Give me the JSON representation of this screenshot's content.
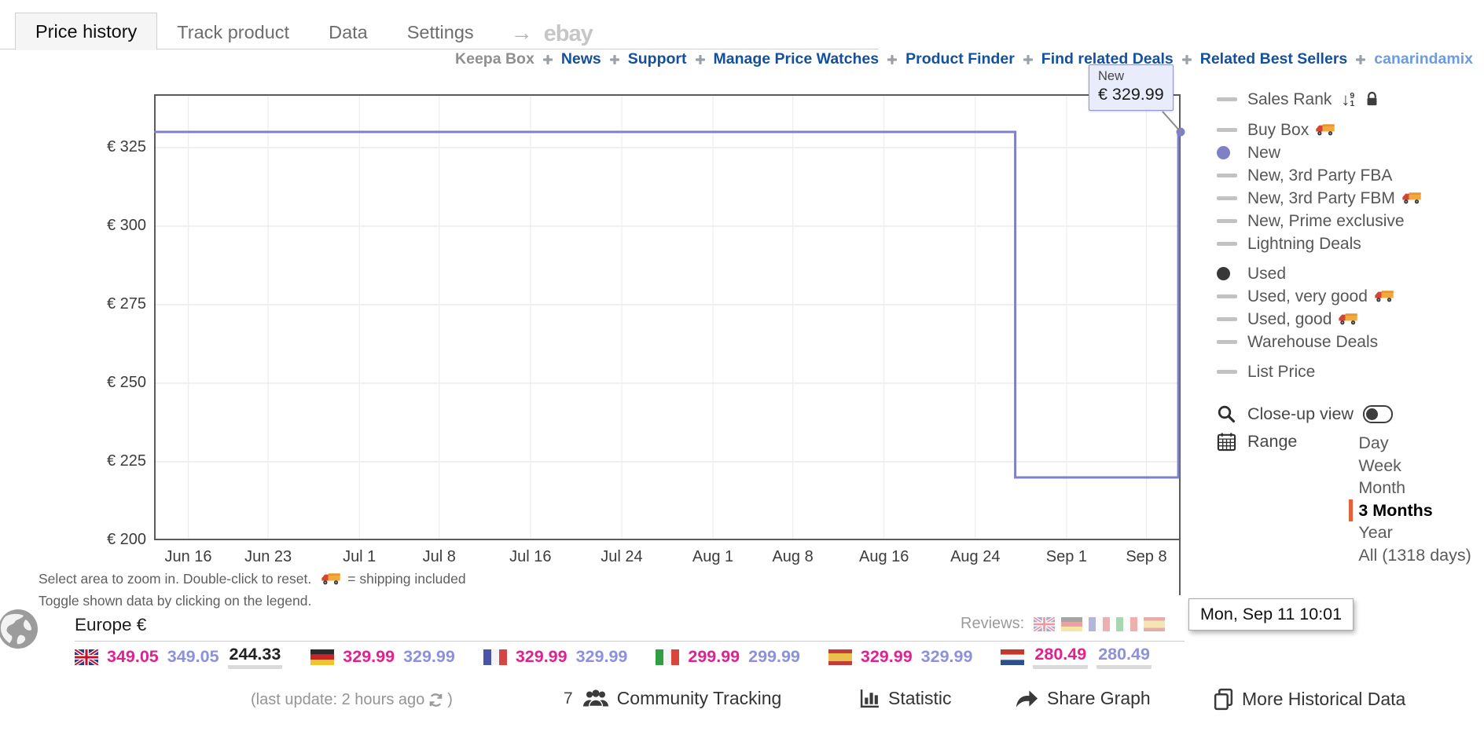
{
  "tabs": {
    "items": [
      {
        "label": "Price history",
        "active": true
      },
      {
        "label": "Track product",
        "active": false
      },
      {
        "label": "Data",
        "active": false
      },
      {
        "label": "Settings",
        "active": false
      }
    ],
    "arrow": "→",
    "ebay_logo": "ebay"
  },
  "nav": {
    "prefix": "Keepa Box",
    "links": [
      "News",
      "Support",
      "Manage Price Watches",
      "Product Finder",
      "Find related Deals",
      "Related Best Sellers"
    ],
    "user": "canarindamix"
  },
  "tooltip": {
    "title": "New",
    "price": "€ 329.99"
  },
  "legend": {
    "items": [
      {
        "label": "Sales Rank",
        "marker": "dash",
        "truck": false,
        "sort_icon": true,
        "lock_icon": true,
        "gap": ""
      },
      {
        "label": "Buy Box",
        "marker": "dash",
        "truck": true,
        "gap": "sm"
      },
      {
        "label": "New",
        "marker": "dot-purple",
        "truck": false,
        "gap": ""
      },
      {
        "label": "New, 3rd Party FBA",
        "marker": "dash",
        "truck": false,
        "gap": ""
      },
      {
        "label": "New, 3rd Party FBM",
        "marker": "dash",
        "truck": true,
        "gap": ""
      },
      {
        "label": "New, Prime exclusive",
        "marker": "dash",
        "truck": false,
        "gap": ""
      },
      {
        "label": "Lightning Deals",
        "marker": "dash",
        "truck": false,
        "gap": ""
      },
      {
        "label": "Used",
        "marker": "dot-dark",
        "truck": false,
        "gap": "md"
      },
      {
        "label": "Used, very good",
        "marker": "dash",
        "truck": true,
        "gap": ""
      },
      {
        "label": "Used, good",
        "marker": "dash",
        "truck": true,
        "gap": ""
      },
      {
        "label": "Warehouse Deals",
        "marker": "dash",
        "truck": false,
        "gap": ""
      },
      {
        "label": "List Price",
        "marker": "dash",
        "truck": false,
        "gap": "md"
      }
    ],
    "sort_numbers": [
      "9",
      "1"
    ]
  },
  "controls": {
    "close_up_label": "Close-up view",
    "range_label": "Range",
    "range_options": [
      "Day",
      "Week",
      "Month",
      "3 Months",
      "Year",
      "All (1318 days)"
    ],
    "range_selected": "3 Months"
  },
  "date_tooltip": "Mon, Sep 11 10:01",
  "hints": {
    "line1_before_icon": "Select area to zoom in. Double-click to reset.",
    "line1_after_icon": "= shipping included",
    "line2": "Toggle shown data by clicking on the legend."
  },
  "region": {
    "title": "Europe €",
    "reviews_label": "Reviews:",
    "review_flags": [
      "uk",
      "de",
      "fr",
      "it",
      "es"
    ]
  },
  "prices": [
    {
      "flag": "uk",
      "values": [
        {
          "text": "349.05",
          "color": "pink",
          "lowest": false
        },
        {
          "text": "349.05",
          "color": "purple",
          "lowest": false
        },
        {
          "text": "244.33",
          "color": "black",
          "lowest": true
        }
      ]
    },
    {
      "flag": "de",
      "values": [
        {
          "text": "329.99",
          "color": "pink",
          "lowest": false
        },
        {
          "text": "329.99",
          "color": "purple",
          "lowest": false
        }
      ]
    },
    {
      "flag": "fr",
      "values": [
        {
          "text": "329.99",
          "color": "pink",
          "lowest": false
        },
        {
          "text": "329.99",
          "color": "purple",
          "lowest": false
        }
      ]
    },
    {
      "flag": "it",
      "values": [
        {
          "text": "299.99",
          "color": "pink",
          "lowest": false
        },
        {
          "text": "299.99",
          "color": "purple",
          "lowest": false
        }
      ]
    },
    {
      "flag": "es",
      "values": [
        {
          "text": "329.99",
          "color": "pink",
          "lowest": false
        },
        {
          "text": "329.99",
          "color": "purple",
          "lowest": false
        }
      ]
    },
    {
      "flag": "nl",
      "values": [
        {
          "text": "280.49",
          "color": "pink",
          "lowest": true
        },
        {
          "text": "280.49",
          "color": "purple",
          "lowest": true
        }
      ]
    }
  ],
  "footer": {
    "last_update_prefix": "(last update: 2 hours ago",
    "last_update_suffix": ")",
    "community_count": "7",
    "community_label": "Community Tracking",
    "statistic_label": "Statistic",
    "share_label": "Share Graph",
    "more_label": "More Historical Data"
  },
  "colors": {
    "line_purple": "#7e81c8",
    "used_dot": "#383838",
    "price_pink": "#e0218f",
    "price_purple": "#8d90dd",
    "link_blue": "#14509e",
    "user_blue": "#6b9be0",
    "range_bar_orange": "#e8603a"
  },
  "chart_data": {
    "type": "line",
    "step": true,
    "title": "",
    "currency": "EUR",
    "series": [
      {
        "name": "New",
        "color": "#7e81c8",
        "points": [
          {
            "day": 0,
            "date": "Jun 13",
            "price": 329.99
          },
          {
            "day": 75.5,
            "date": "Aug 27",
            "price": 329.99
          },
          {
            "day": 75.5,
            "date": "Aug 27",
            "price": 219.99
          },
          {
            "day": 89.8,
            "date": "Sep 11",
            "price": 219.99
          },
          {
            "day": 89.8,
            "date": "Sep 11",
            "price": 329.99
          },
          {
            "day": 90,
            "date": "Sep 11",
            "price": 329.99
          }
        ],
        "current_price": 329.99,
        "end_marker": true
      }
    ],
    "x_ticks": [
      {
        "day": 3,
        "label": "Jun 16"
      },
      {
        "day": 10,
        "label": "Jun 23"
      },
      {
        "day": 18,
        "label": "Jul 1"
      },
      {
        "day": 25,
        "label": "Jul 8"
      },
      {
        "day": 33,
        "label": "Jul 16"
      },
      {
        "day": 41,
        "label": "Jul 24"
      },
      {
        "day": 49,
        "label": "Aug 1"
      },
      {
        "day": 56,
        "label": "Aug 8"
      },
      {
        "day": 64,
        "label": "Aug 16"
      },
      {
        "day": 72,
        "label": "Aug 24"
      },
      {
        "day": 80,
        "label": "Sep 1"
      },
      {
        "day": 87,
        "label": "Sep 8"
      }
    ],
    "y_ticks": [
      {
        "value": 325,
        "label": "€ 325"
      },
      {
        "value": 300,
        "label": "€ 300"
      },
      {
        "value": 275,
        "label": "€ 275"
      },
      {
        "value": 250,
        "label": "€ 250"
      },
      {
        "value": 225,
        "label": "€ 225"
      },
      {
        "value": 200,
        "label": "€ 200"
      }
    ],
    "x_range_days": [
      0,
      90
    ],
    "y_range": [
      200,
      342
    ],
    "grid": true,
    "legend_position": "right"
  }
}
